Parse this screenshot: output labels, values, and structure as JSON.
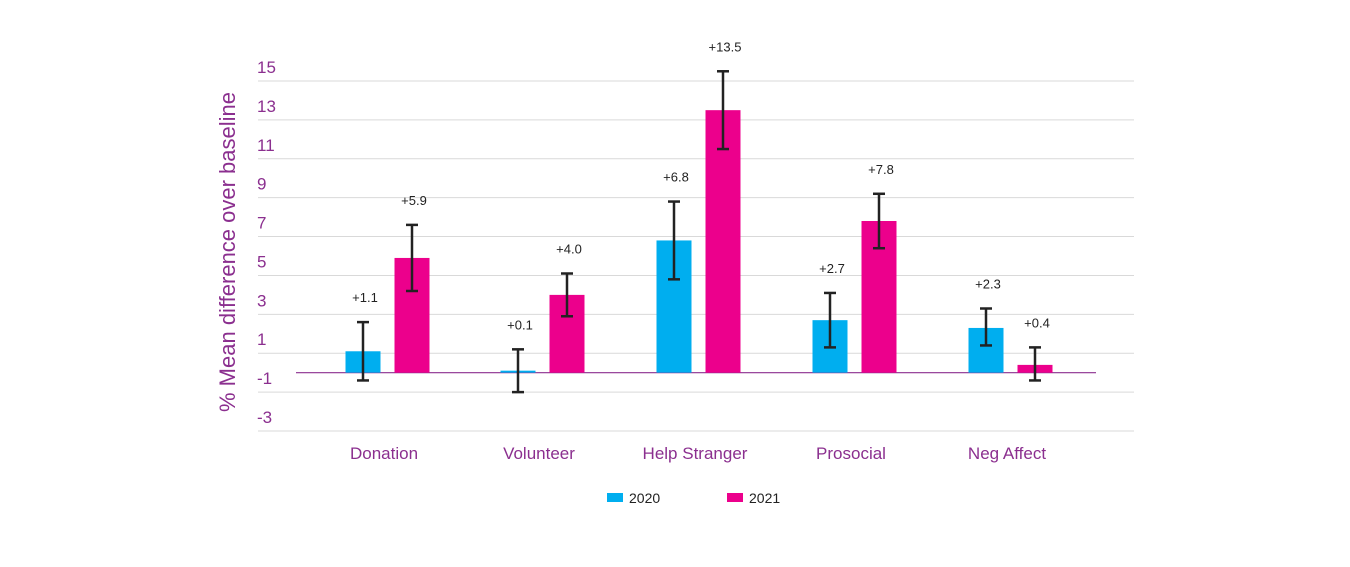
{
  "chart_data": {
    "type": "bar",
    "categories": [
      "Donation",
      "Volunteer",
      "Help Stranger",
      "Prosocial",
      "Neg Affect"
    ],
    "series": [
      {
        "name": "2020",
        "color": "#00aeef",
        "values": [
          1.1,
          0.1,
          6.8,
          2.7,
          2.3
        ],
        "labels": [
          "+1.1",
          "+0.1",
          "+6.8",
          "+2.7",
          "+2.3"
        ],
        "error_low": [
          -0.4,
          -1.0,
          4.8,
          1.3,
          1.4
        ],
        "error_high": [
          2.6,
          1.2,
          8.8,
          4.1,
          3.3
        ]
      },
      {
        "name": "2021",
        "color": "#ec008c",
        "values": [
          5.9,
          4.0,
          13.5,
          7.8,
          0.4
        ],
        "labels": [
          "+5.9",
          "+4.0",
          "+13.5",
          "+7.8",
          "+0.4"
        ],
        "error_low": [
          4.2,
          2.9,
          11.5,
          6.4,
          -0.4
        ],
        "error_high": [
          7.6,
          5.1,
          15.5,
          9.2,
          1.3
        ]
      }
    ],
    "ylabel": "% Mean difference over baseline",
    "yticks": [
      15,
      13,
      11,
      9,
      7,
      5,
      3,
      1,
      -1,
      -3
    ],
    "ylim": [
      -3,
      15
    ],
    "grid": true,
    "legend_placement": "bottom-center"
  }
}
